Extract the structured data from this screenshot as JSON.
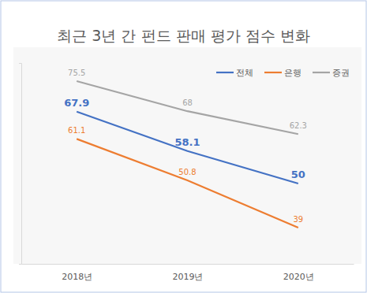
{
  "chart_data": {
    "type": "line",
    "title": "최근 3년 간 펀드 판매 평가 점수 변화",
    "categories": [
      "2018년",
      "2019년",
      "2020년"
    ],
    "series": [
      {
        "name": "전체",
        "color": "#4472c4",
        "values": [
          67.9,
          58.1,
          50
        ]
      },
      {
        "name": "은행",
        "color": "#ed7d31",
        "values": [
          61.1,
          50.8,
          39
        ]
      },
      {
        "name": "증권",
        "color": "#a5a5a5",
        "values": [
          75.5,
          68,
          62.3
        ]
      }
    ],
    "ylim": [
      30,
      80
    ],
    "grid": false,
    "legend": "top-right",
    "data_labels": true,
    "tick_labels": "x"
  }
}
